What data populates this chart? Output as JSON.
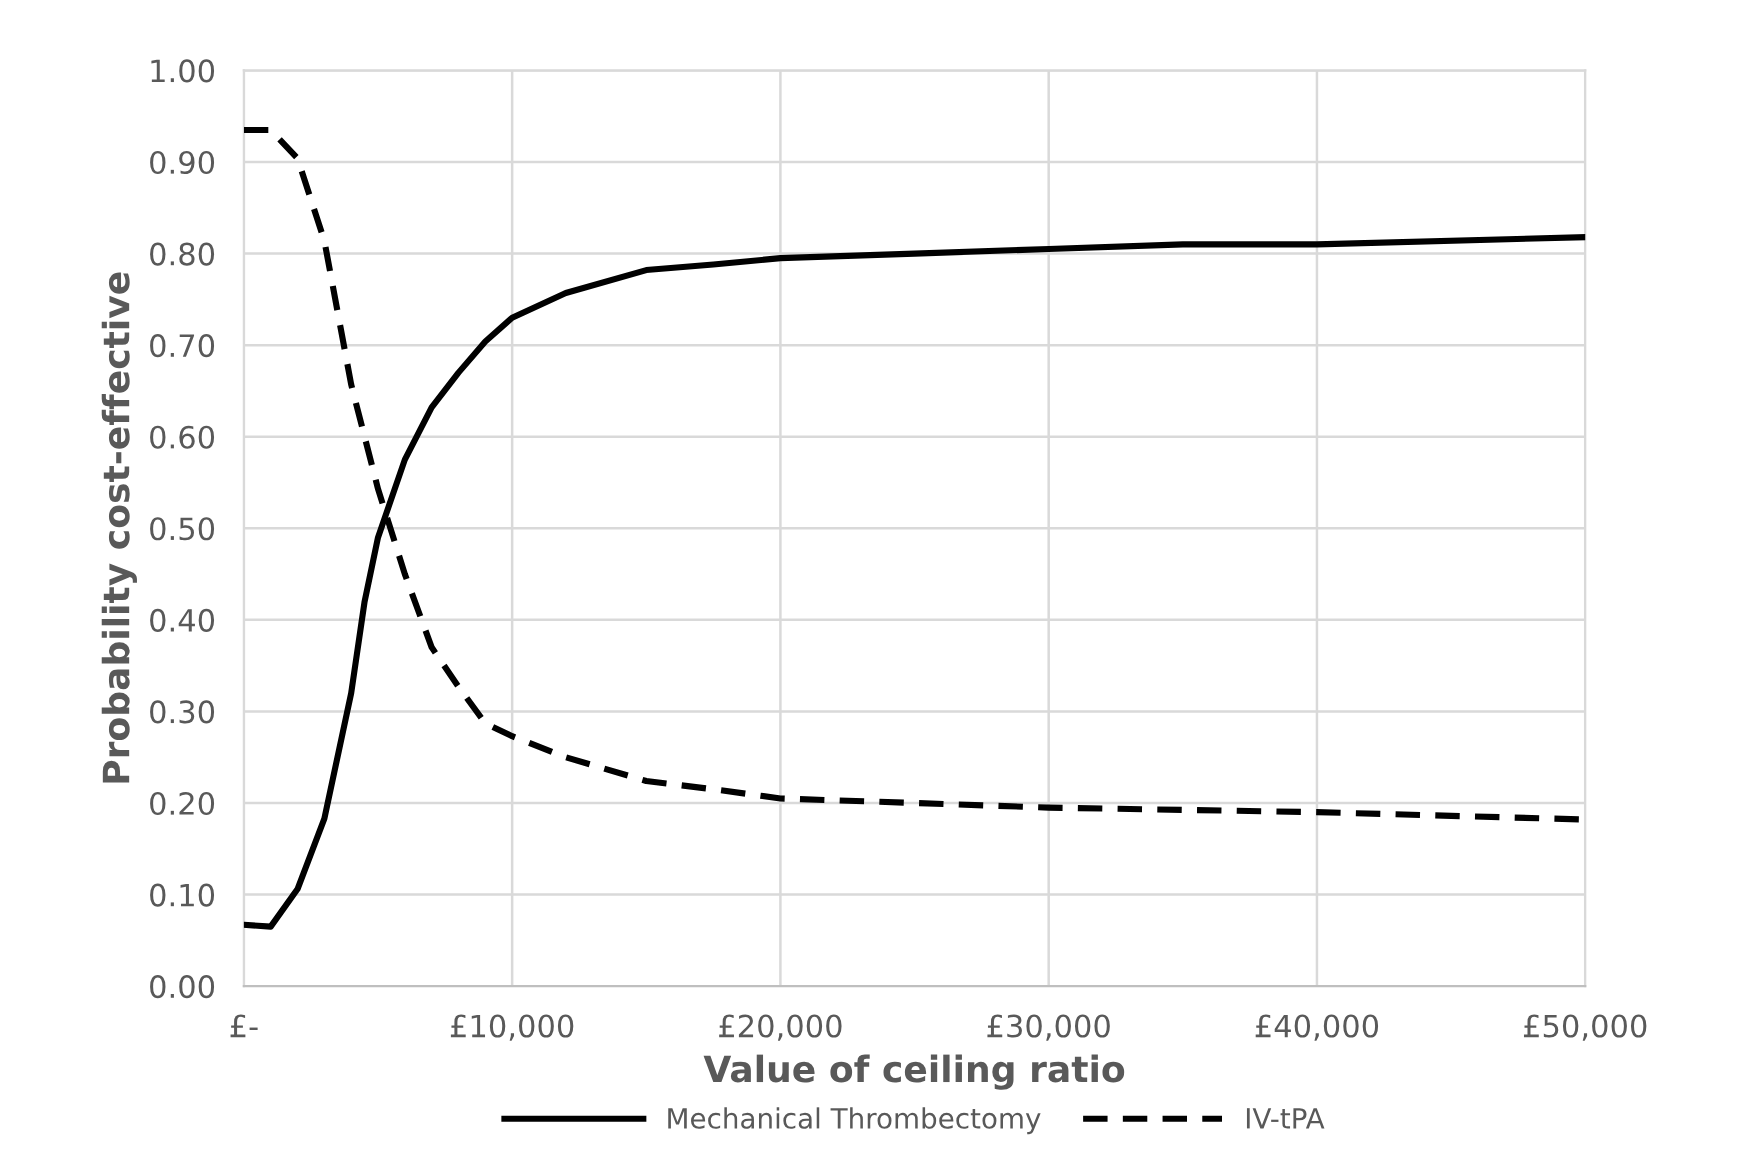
{
  "chart_data": {
    "type": "line",
    "xlabel": "Value of ceiling ratio",
    "ylabel": "Probability cost-effective",
    "xlim": [
      0,
      50000
    ],
    "ylim": [
      0,
      1
    ],
    "xticks": [
      {
        "value": 0,
        "label": "£-"
      },
      {
        "value": 10000,
        "label": "£10,000"
      },
      {
        "value": 20000,
        "label": "£20,000"
      },
      {
        "value": 30000,
        "label": "£30,000"
      },
      {
        "value": 40000,
        "label": "£40,000"
      },
      {
        "value": 50000,
        "label": "£50,000"
      }
    ],
    "yticks": [
      {
        "value": 0,
        "label": "0.00"
      },
      {
        "value": 0.1,
        "label": "0.10"
      },
      {
        "value": 0.2,
        "label": "0.20"
      },
      {
        "value": 0.3,
        "label": "0.30"
      },
      {
        "value": 0.4,
        "label": "0.40"
      },
      {
        "value": 0.5,
        "label": "0.50"
      },
      {
        "value": 0.6,
        "label": "0.60"
      },
      {
        "value": 0.7,
        "label": "0.70"
      },
      {
        "value": 0.8,
        "label": "0.80"
      },
      {
        "value": 0.9,
        "label": "0.90"
      },
      {
        "value": 1,
        "label": "1.00"
      }
    ],
    "grid": true,
    "legend": "bottom",
    "marker": "none",
    "series": [
      {
        "name": "Mechanical Thrombectomy",
        "color": "#000000",
        "line_style": "solid",
        "x": [
          0,
          1000,
          2000,
          3000,
          4000,
          4500,
          5000,
          6000,
          7000,
          8000,
          9000,
          10000,
          12000,
          15000,
          17500,
          20000,
          25000,
          30000,
          35000,
          40000,
          50000
        ],
        "values": [
          0.067,
          0.065,
          0.106,
          0.183,
          0.32,
          0.42,
          0.49,
          0.575,
          0.632,
          0.67,
          0.704,
          0.73,
          0.757,
          0.782,
          0.788,
          0.795,
          0.8,
          0.805,
          0.81,
          0.81,
          0.818
        ]
      },
      {
        "name": "IV-tPA",
        "color": "#000000",
        "line_style": "dashed",
        "x": [
          0,
          1000,
          2000,
          3000,
          4000,
          5000,
          6000,
          7000,
          8000,
          9000,
          10000,
          12000,
          15000,
          17500,
          20000,
          25000,
          30000,
          40000,
          50000
        ],
        "values": [
          0.935,
          0.935,
          0.904,
          0.814,
          0.657,
          0.543,
          0.45,
          0.37,
          0.327,
          0.287,
          0.273,
          0.25,
          0.224,
          0.215,
          0.205,
          0.2,
          0.195,
          0.19,
          0.182
        ]
      }
    ]
  }
}
